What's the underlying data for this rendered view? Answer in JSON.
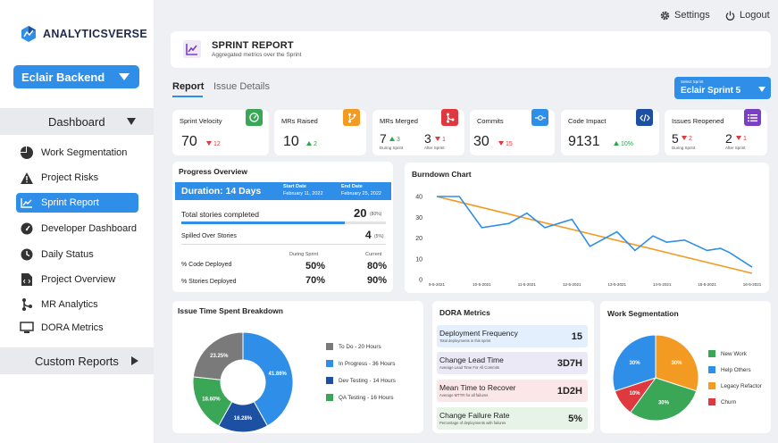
{
  "brand": {
    "name": "ANALYTICSVERSE"
  },
  "team": {
    "selected": "Eclair Backend"
  },
  "nav": {
    "dashboard": "Dashboard",
    "items": [
      {
        "label": "Work Segmentation",
        "icon": "pie-chart-icon"
      },
      {
        "label": "Project Risks",
        "icon": "warning-icon"
      },
      {
        "label": "Sprint Report",
        "icon": "trend-chart-icon",
        "active": true
      },
      {
        "label": "Developer Dashboard",
        "icon": "gauge-icon"
      },
      {
        "label": "Daily Status",
        "icon": "clock-icon"
      },
      {
        "label": "Project Overview",
        "icon": "document-code-icon"
      },
      {
        "label": "MR Analytics",
        "icon": "git-branch-icon"
      },
      {
        "label": "DORA Metrics",
        "icon": "monitor-icon"
      }
    ],
    "custom_reports": "Custom Reports"
  },
  "topbar": {
    "settings": "Settings",
    "logout": "Logout"
  },
  "header": {
    "title": "SPRINT REPORT",
    "subtitle": "Aggregated metrics over the Sprint"
  },
  "tabs": [
    {
      "label": "Report",
      "active": true
    },
    {
      "label": "Issue Details",
      "active": false
    }
  ],
  "sprint_select": {
    "label": "Select Sprint",
    "value": "Eclair Sprint 5"
  },
  "kpis": {
    "velocity": {
      "title": "Sprint Velocity",
      "value": "70",
      "delta": "12",
      "dir": "down",
      "color": "#3aa757"
    },
    "mrs_raised": {
      "title": "MRs Raised",
      "value": "10",
      "delta": "2",
      "dir": "up",
      "color": "#f39a22"
    },
    "mrs_merged": {
      "title": "MRs Merged",
      "during": "7",
      "during_delta": "3",
      "after": "3",
      "after_delta": "1",
      "during_label": "During Sprint",
      "after_label": "After Sprint",
      "color": "#e0383f"
    },
    "commits": {
      "title": "Commits",
      "value": "30",
      "delta": "15",
      "dir": "down",
      "color": "#2f8fe8"
    },
    "code_impact": {
      "title": "Code Impact",
      "value": "9131",
      "delta": "10%",
      "dir": "up",
      "color": "#1d4fa3"
    },
    "issues_reopened": {
      "title": "Issues Reopened",
      "during": "5",
      "during_delta": "2",
      "after": "2",
      "after_delta": "1",
      "during_label": "During Sprint",
      "after_label": "After Sprint",
      "color": "#7b3fc4"
    }
  },
  "progress": {
    "title": "Progress Overview",
    "duration": "Duration: 14 Days",
    "start_label": "Start Date",
    "start": "February 11, 2022",
    "end_label": "End Date",
    "end": "February 25, 2022",
    "completed_label": "Total stories completed",
    "completed": "20",
    "completed_pct": "(80%)",
    "completed_fraction": 0.8,
    "spilled_label": "Spilled Over Stories",
    "spilled": "4",
    "spilled_pct": "(5%)",
    "during_hdr": "During Sprint",
    "current_hdr": "Current",
    "code_label": "% Code Deployed",
    "code_during": "50%",
    "code_current": "80%",
    "stories_label": "% Stories Deployed",
    "stories_during": "70%",
    "stories_current": "90%"
  },
  "burndown": {
    "title": "Burndown Chart"
  },
  "chart_data": [
    {
      "type": "line",
      "title": "Burndown Chart",
      "x": [
        "9-5-2021",
        "10-5-2021",
        "11-5-2021",
        "12-5-2021",
        "13-5-2021",
        "14-5-2021",
        "15-5-2021",
        "16-5-2021"
      ],
      "ylim": [
        0,
        40
      ],
      "yticks": [
        0,
        10,
        20,
        30,
        40
      ],
      "series": [
        {
          "color": "#f39a22",
          "points": [
            [
              0,
              40
            ],
            [
              7,
              3
            ]
          ]
        },
        {
          "color": "#2f8fe8",
          "points": [
            [
              0,
              40
            ],
            [
              0.5,
              40
            ],
            [
              1,
              25
            ],
            [
              1.6,
              27
            ],
            [
              2,
              32
            ],
            [
              2.4,
              25
            ],
            [
              3,
              29
            ],
            [
              3.4,
              16
            ],
            [
              4,
              23
            ],
            [
              4.4,
              14
            ],
            [
              4.8,
              21
            ],
            [
              5.1,
              18
            ],
            [
              5.5,
              19
            ],
            [
              6,
              14
            ],
            [
              6.3,
              15
            ],
            [
              6.5,
              13
            ],
            [
              7,
              6
            ]
          ]
        }
      ]
    },
    {
      "type": "pie",
      "title": "Issue Time Spent Breakdown",
      "labels": [
        "To Do - 20 Hours",
        "In Progress - 36 Hours",
        "Dev Testing - 14 Hours",
        "QA Testing - 16 Hours"
      ],
      "values": [
        23.25,
        41.86,
        16.28,
        18.6
      ],
      "value_labels": [
        "23.25%",
        "41.86%",
        "16.28%",
        "18.60%"
      ],
      "colors": [
        "#7a7a7a",
        "#2f8fe8",
        "#1d4fa3",
        "#3aa757"
      ]
    },
    {
      "type": "pie",
      "title": "Work Segmentation",
      "labels": [
        "New Work",
        "Help Others",
        "Legacy Refactor",
        "Churn"
      ],
      "values": [
        30,
        30,
        30,
        10
      ],
      "value_labels": [
        "30%",
        "30%",
        "30%",
        "10%"
      ],
      "colors": [
        "#3aa757",
        "#2f8fe8",
        "#f39a22",
        "#e0383f"
      ]
    }
  ],
  "dora": {
    "title": "DORA Metrics",
    "items": [
      {
        "name": "Deployment  Frequency",
        "sub": "Total deployments in this sprint",
        "value": "15",
        "bg": "#e3effd"
      },
      {
        "name": "Change Lead Time",
        "sub": "Average Lead Time For All Commits",
        "value": "3D7H",
        "bg": "#ece9f6"
      },
      {
        "name": "Mean Time to Recover",
        "sub": "Average MTTR for all failures",
        "value": "1D2H",
        "bg": "#fbe7e7"
      },
      {
        "name": "Change Failure Rate",
        "sub": "Percentage of deployments with failures",
        "value": "5%",
        "bg": "#e6f3e6"
      }
    ]
  },
  "issue_time": {
    "title": "Issue Time Spent Breakdown"
  },
  "work_seg": {
    "title": "Work Segmentation"
  }
}
